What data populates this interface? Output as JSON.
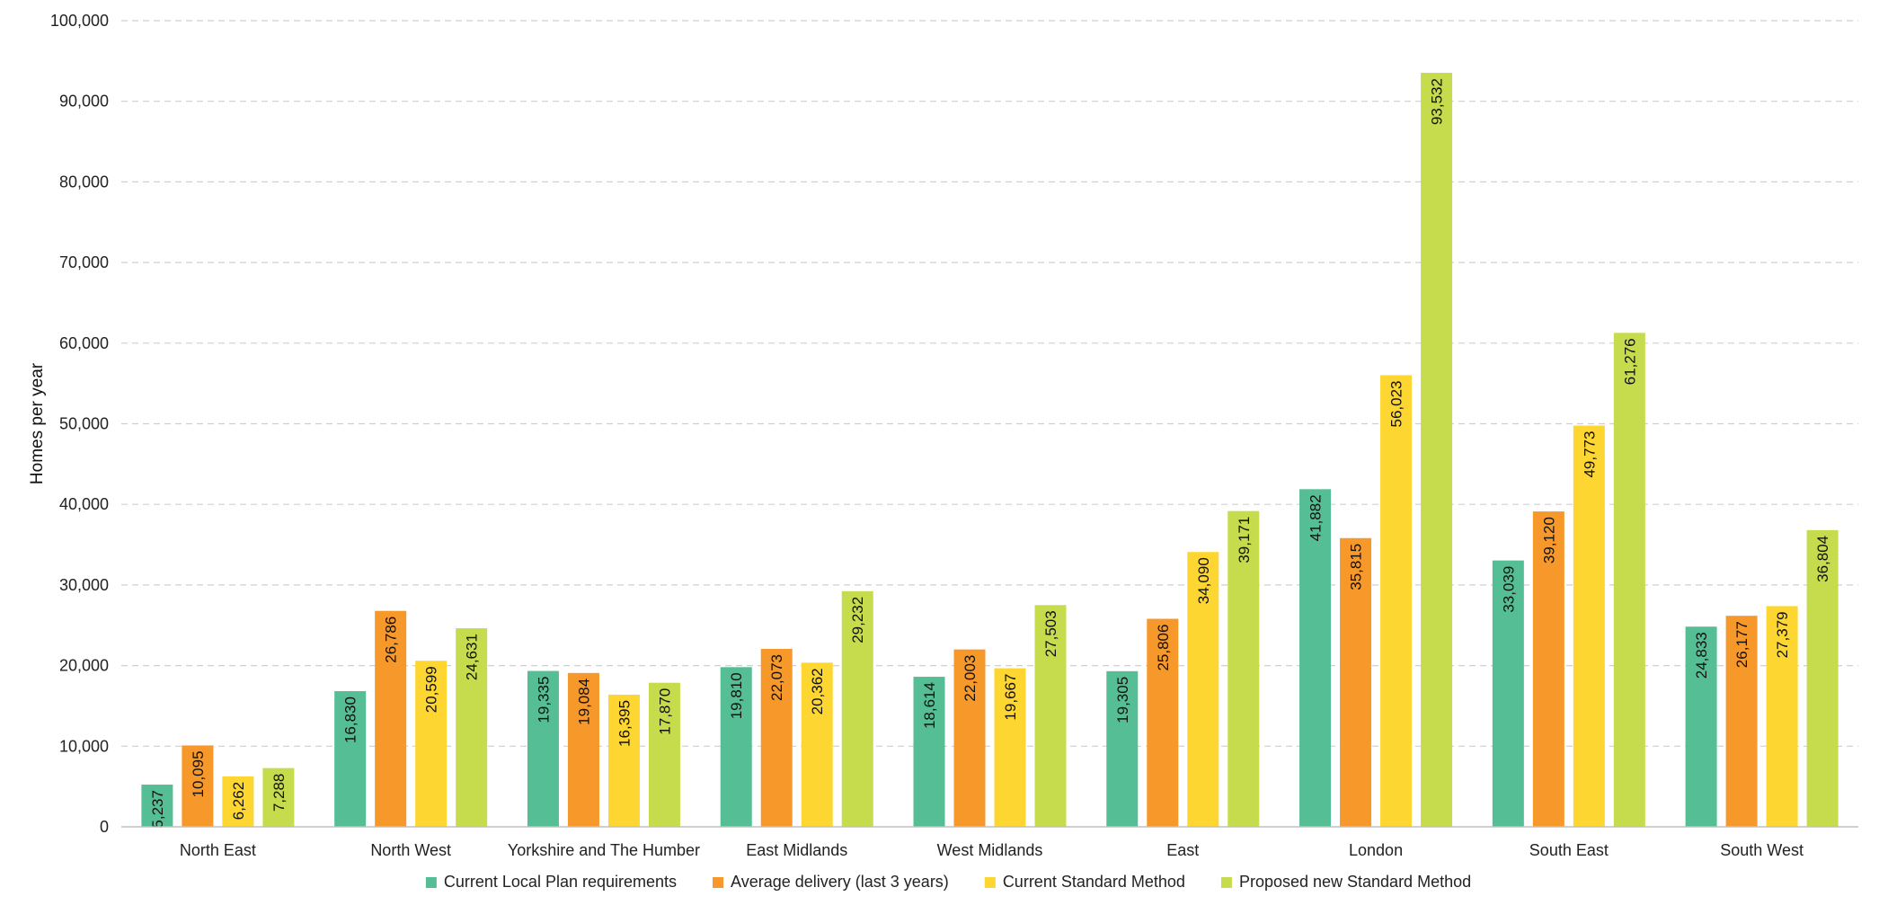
{
  "chart_data": {
    "type": "bar",
    "title": "",
    "xlabel": "",
    "ylabel": "Homes per year",
    "ylim": [
      0,
      100000
    ],
    "yticks": [
      "0",
      "10,000",
      "20,000",
      "30,000",
      "40,000",
      "50,000",
      "60,000",
      "70,000",
      "80,000",
      "90,000",
      "100,000"
    ],
    "ytick_values": [
      0,
      10000,
      20000,
      30000,
      40000,
      50000,
      60000,
      70000,
      80000,
      90000,
      100000
    ],
    "grid": true,
    "legend_position": "bottom",
    "categories": [
      "North East",
      "North West",
      "Yorkshire and The Humber",
      "East Midlands",
      "West Midlands",
      "East",
      "London",
      "South East",
      "South West"
    ],
    "series": [
      {
        "name": "Current Local Plan requirements",
        "color": "#55be95",
        "values": [
          5237,
          16830,
          19335,
          19810,
          18614,
          19305,
          41882,
          33039,
          24833
        ],
        "labels": [
          "5,237",
          "16,830",
          "19,335",
          "19,810",
          "18,614",
          "19,305",
          "41,882",
          "33,039",
          "24,833"
        ]
      },
      {
        "name": "Average delivery (last 3 years)",
        "color": "#f7982a",
        "values": [
          10095,
          26786,
          19084,
          22073,
          22003,
          25806,
          35815,
          39120,
          26177
        ],
        "labels": [
          "10,095",
          "26,786",
          "19,084",
          "22,073",
          "22,003",
          "25,806",
          "35,815",
          "39,120",
          "26,177"
        ]
      },
      {
        "name": "Current Standard Method",
        "color": "#fdd631",
        "values": [
          6262,
          20599,
          16395,
          20362,
          19667,
          34090,
          56023,
          49773,
          27379
        ],
        "labels": [
          "6,262",
          "20,599",
          "16,395",
          "20,362",
          "19,667",
          "34,090",
          "56,023",
          "49,773",
          "27,379"
        ]
      },
      {
        "name": "Proposed new Standard Method",
        "color": "#c6dc4c",
        "values": [
          7288,
          24631,
          17870,
          29232,
          27503,
          39171,
          93532,
          61276,
          36804
        ],
        "labels": [
          "7,288",
          "24,631",
          "17,870",
          "29,232",
          "27,503",
          "39,171",
          "93,532",
          "61,276",
          "36,804"
        ]
      }
    ]
  }
}
